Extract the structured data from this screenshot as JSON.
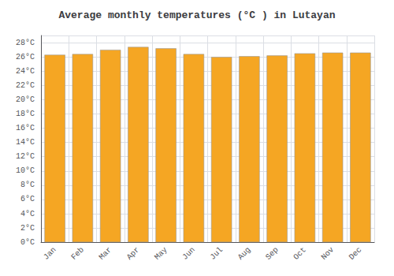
{
  "chart_data": {
    "type": "bar",
    "title": "Average monthly temperatures (°C ) in Lutayan",
    "categories": [
      "Jan",
      "Feb",
      "Mar",
      "Apr",
      "May",
      "Jun",
      "Jul",
      "Aug",
      "Sep",
      "Oct",
      "Nov",
      "Dec"
    ],
    "values": [
      26.3,
      26.4,
      27.0,
      27.4,
      27.2,
      26.4,
      26.0,
      26.1,
      26.2,
      26.5,
      26.6,
      26.6
    ],
    "color": "#F5A623",
    "ylim": [
      0,
      29
    ],
    "yticks": [
      {
        "value": 0,
        "label": "0°C"
      },
      {
        "value": 2,
        "label": "2°C"
      },
      {
        "value": 4,
        "label": "4°C"
      },
      {
        "value": 6,
        "label": "6°C"
      },
      {
        "value": 8,
        "label": "8°C"
      },
      {
        "value": 10,
        "label": "10°C"
      },
      {
        "value": 12,
        "label": "12°C"
      },
      {
        "value": 14,
        "label": "14°C"
      },
      {
        "value": 16,
        "label": "16°C"
      },
      {
        "value": 18,
        "label": "18°C"
      },
      {
        "value": 20,
        "label": "20°C"
      },
      {
        "value": 22,
        "label": "22°C"
      },
      {
        "value": 24,
        "label": "24°C"
      },
      {
        "value": 26,
        "label": "26°C"
      },
      {
        "value": 28,
        "label": "28°C"
      }
    ],
    "grid": true
  }
}
